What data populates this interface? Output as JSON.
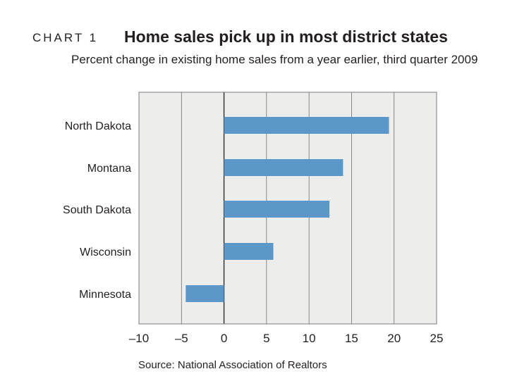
{
  "header": {
    "chart_number": "CHART 1",
    "title": "Home sales pick up in most district states",
    "subtitle": "Percent change in existing home sales from a year earlier, third quarter 2009"
  },
  "footer": {
    "source": "Source: National Association of Realtors"
  },
  "colors": {
    "bar": "#5b97c9",
    "plot_background": "#ededeb",
    "gridline": "#6d6e70",
    "frame": "#7a7b7d",
    "zero_line": "#231f20"
  },
  "chart_data": {
    "type": "bar",
    "orientation": "horizontal",
    "title": "Home sales pick up in most district states",
    "subtitle": "Percent change in existing home sales from a year earlier, third quarter 2009",
    "xlabel": "",
    "ylabel": "",
    "categories": [
      "North Dakota",
      "Montana",
      "South Dakota",
      "Wisconsin",
      "Minnesota"
    ],
    "values": [
      19.4,
      14.0,
      12.4,
      5.8,
      -4.5
    ],
    "xlim": [
      -10,
      25
    ],
    "xticks": [
      -10,
      -5,
      0,
      5,
      10,
      15,
      20,
      25
    ],
    "xtick_labels": [
      "–10",
      "–5",
      "0",
      "5",
      "10",
      "15",
      "20",
      "25"
    ],
    "grid": "vertical",
    "legend": "none"
  }
}
